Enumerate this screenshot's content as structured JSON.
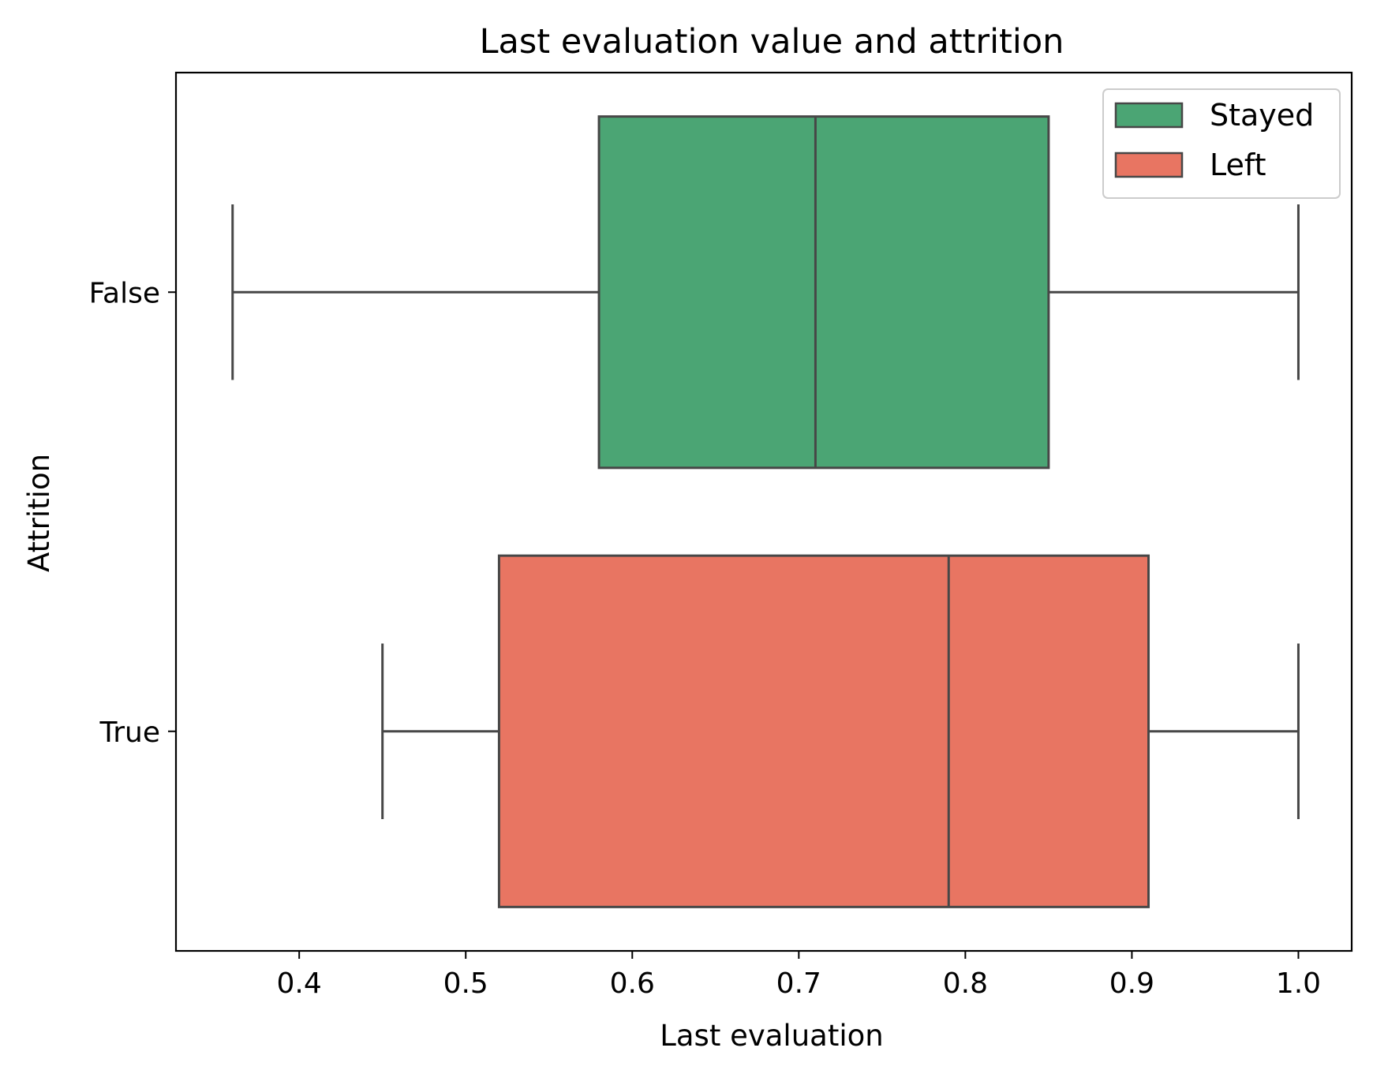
{
  "chart_data": {
    "type": "boxplot",
    "orientation": "horizontal",
    "title": "Last evaluation value and attrition",
    "xlabel": "Last evaluation",
    "ylabel": "Attrition",
    "xlim": [
      0.326,
      1.032
    ],
    "xticks": [
      0.4,
      0.5,
      0.6,
      0.7,
      0.8,
      0.9,
      1.0
    ],
    "xtick_labels": [
      "0.4",
      "0.5",
      "0.6",
      "0.7",
      "0.8",
      "0.9",
      "1.0"
    ],
    "categories": [
      "False",
      "True"
    ],
    "series": [
      {
        "name": "Stayed",
        "category": "False",
        "color": "#4ba574",
        "min": 0.36,
        "q1": 0.58,
        "median": 0.71,
        "q3": 0.85,
        "max": 1.0
      },
      {
        "name": "Left",
        "category": "True",
        "color": "#e87562",
        "min": 0.45,
        "q1": 0.52,
        "median": 0.79,
        "q3": 0.91,
        "max": 1.0
      }
    ],
    "legend_position": "top-right",
    "grid": false
  }
}
